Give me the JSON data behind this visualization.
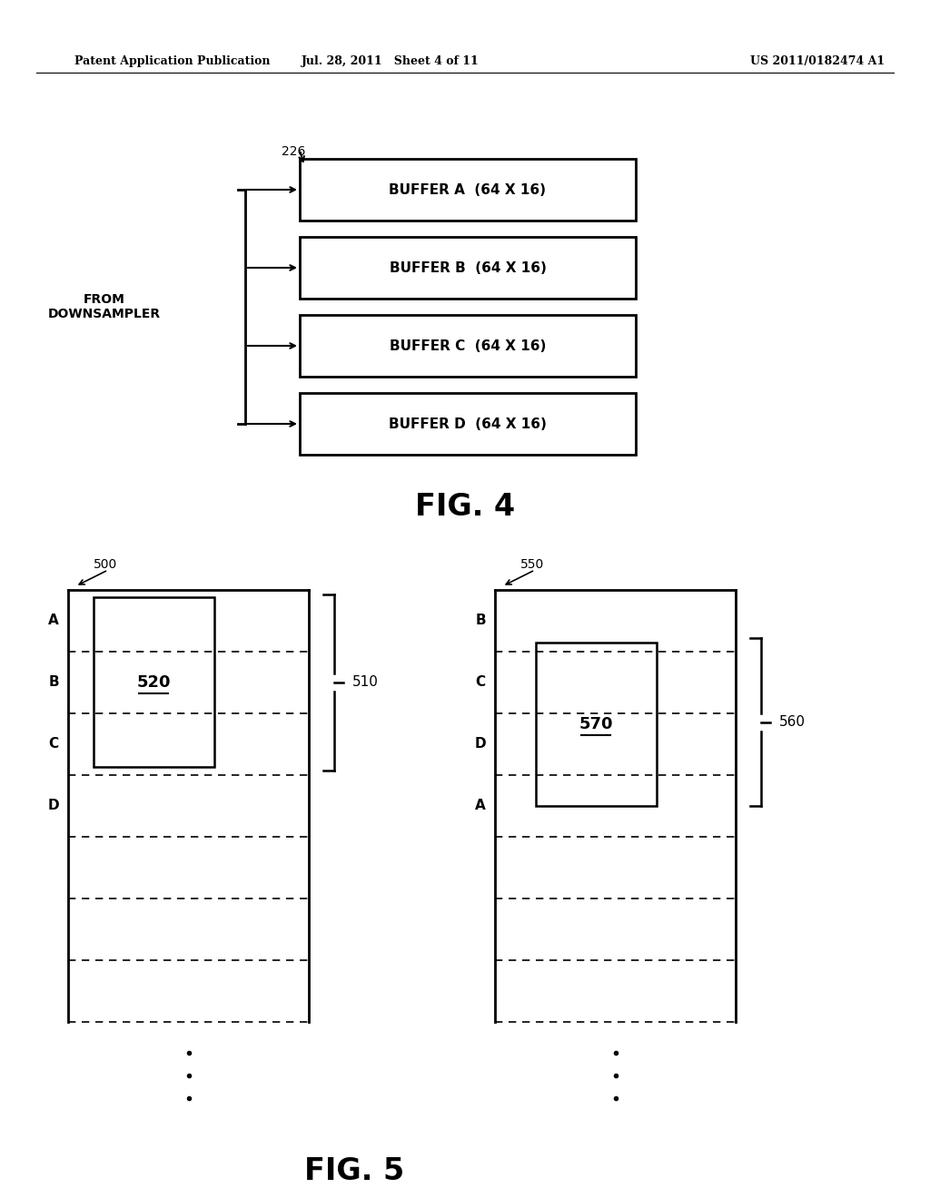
{
  "bg_color": "#ffffff",
  "header_left": "Patent Application Publication",
  "header_mid": "Jul. 28, 2011   Sheet 4 of 11",
  "header_right": "US 2011/0182474 A1",
  "fig4": {
    "label": "226",
    "from_label": "FROM\nDOWNSAMPLER",
    "buffers": [
      "BUFFER A  (64 X 16)",
      "BUFFER B  (64 X 16)",
      "BUFFER C  (64 X 16)",
      "BUFFER D  (64 X 16)"
    ],
    "fig_label": "FIG. 4"
  },
  "fig5": {
    "left": {
      "label": "500",
      "bracket_label": "510",
      "inner_label": "520",
      "rows": [
        "A",
        "B",
        "C",
        "D"
      ]
    },
    "right": {
      "label": "550",
      "bracket_label": "560",
      "inner_label": "570",
      "rows": [
        "B",
        "C",
        "D",
        "A"
      ]
    },
    "fig_label": "FIG. 5"
  }
}
